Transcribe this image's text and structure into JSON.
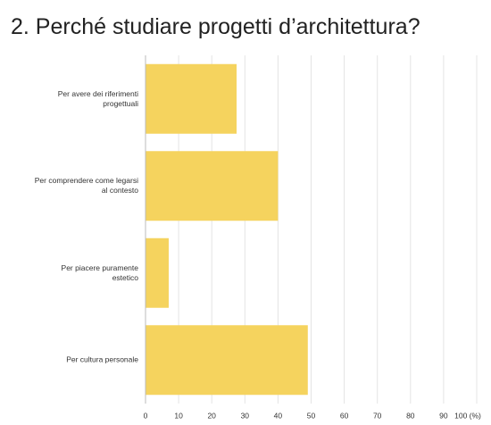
{
  "chart_data": {
    "type": "bar",
    "orientation": "horizontal",
    "title": "2. Perché studiare progetti d’architettura?",
    "categories": [
      "Per avere dei riferimenti progettuali",
      "Per comprendere come legarsi al contesto",
      "Per piacere puramente estetico",
      "Per cultura personale"
    ],
    "values": [
      27.5,
      40,
      7,
      49
    ],
    "color": "#f5d35e",
    "xlim": [
      0,
      100
    ],
    "xticks": [
      0,
      10,
      20,
      30,
      40,
      50,
      60,
      70,
      80,
      90,
      {
        "value": 100,
        "label": "100 (%)"
      }
    ],
    "grid": true
  }
}
